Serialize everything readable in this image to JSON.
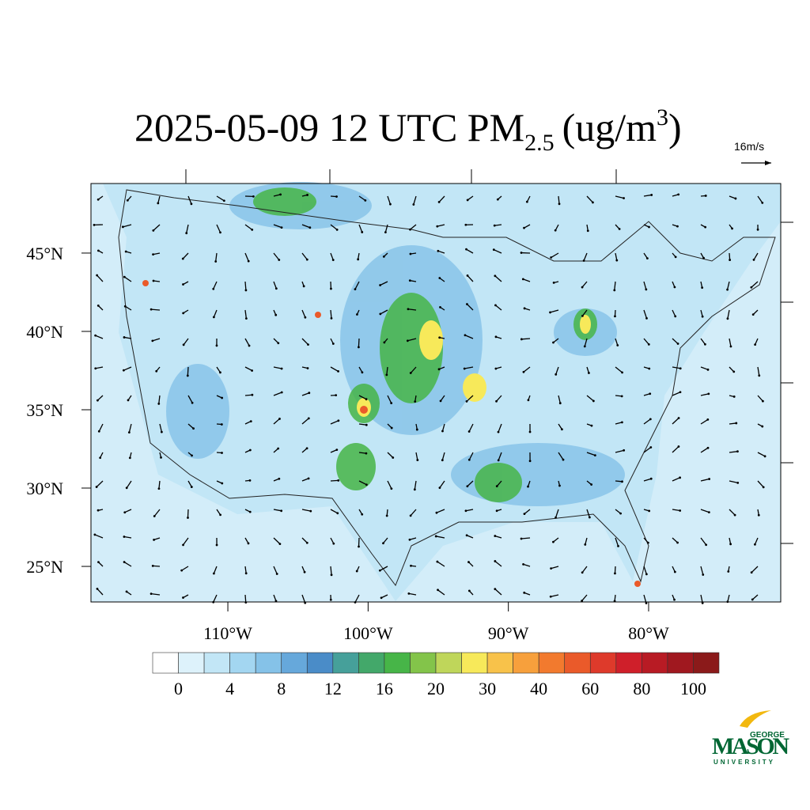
{
  "map": {
    "title": {
      "main": "2025-05-09 12 UTC PM",
      "sub": "2.5",
      "unit": "(ug/m",
      "sup": "3",
      "close": ")"
    },
    "vector_reference": "16m/s",
    "xlim": [
      -119.76,
      -70.58
    ],
    "ylim": [
      22.73,
      49.44
    ],
    "xticks": [
      {
        "value": -110,
        "label": "110°W"
      },
      {
        "value": -100,
        "label": "100°W"
      },
      {
        "value": -90,
        "label": "90°W"
      },
      {
        "value": -80,
        "label": "80°W"
      }
    ],
    "yticks": [
      {
        "value": 25,
        "label": "25°N"
      },
      {
        "value": 30,
        "label": "30°N"
      },
      {
        "value": 35,
        "label": "35°N"
      },
      {
        "value": 40,
        "label": "40°N"
      },
      {
        "value": 45,
        "label": "45°N"
      }
    ],
    "colorbar": {
      "colors": [
        "#ffffff",
        "#ddf2fb",
        "#c2e6f6",
        "#a3d6f1",
        "#85c2e8",
        "#66a8db",
        "#4a8cc8",
        "#46a09a",
        "#43a86a",
        "#47b548",
        "#83c44a",
        "#bfd65a",
        "#f7e95a",
        "#f8c24a",
        "#f7a03c",
        "#f27a2e",
        "#ea5a2a",
        "#de3a2b",
        "#cf1f2a",
        "#b81b24",
        "#a0181f",
        "#8b1a1a"
      ],
      "levels": [
        0,
        4,
        8,
        12,
        16,
        20,
        30,
        40,
        60,
        80,
        100
      ]
    },
    "logo": {
      "top": "GEORGE",
      "name": "MASON",
      "bottom": "UNIVERSITY"
    }
  }
}
